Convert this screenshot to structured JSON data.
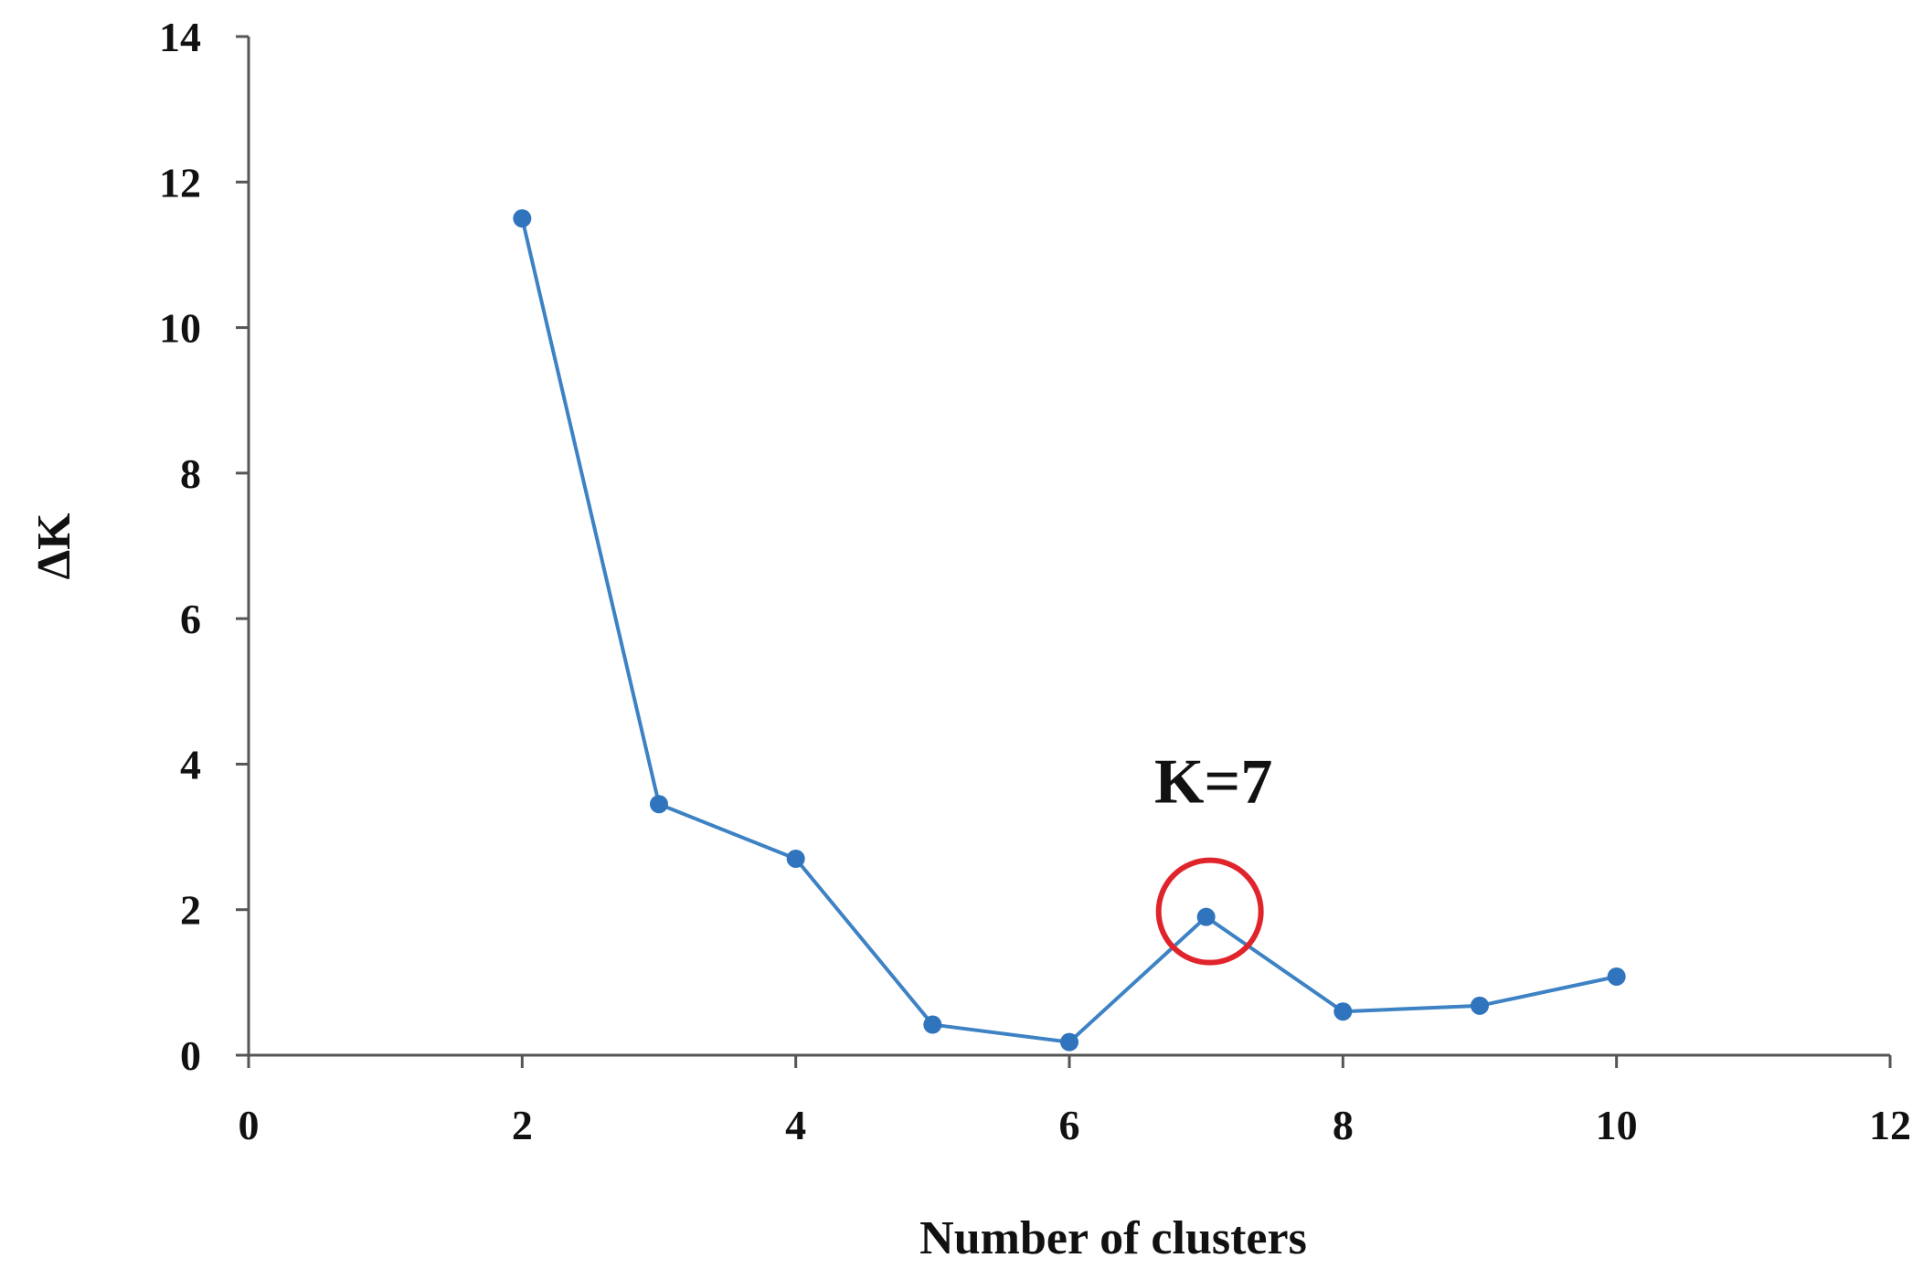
{
  "chart_data": {
    "type": "line",
    "title": "",
    "xlabel": "Number of clusters",
    "ylabel": "ΔK",
    "xlim": [
      0,
      12
    ],
    "ylim": [
      0,
      14
    ],
    "x_ticks": [
      0,
      2,
      4,
      6,
      8,
      10,
      12
    ],
    "y_ticks": [
      0,
      2,
      4,
      6,
      8,
      10,
      12,
      14
    ],
    "grid": false,
    "series": [
      {
        "x": [
          2,
          3,
          4,
          5,
          6,
          7,
          8,
          9,
          10
        ],
        "y": [
          11.5,
          3.45,
          2.7,
          0.42,
          0.18,
          1.9,
          0.6,
          0.68,
          1.08
        ]
      }
    ],
    "annotations": [
      {
        "text": "K=7",
        "x": 7,
        "y": 1.9,
        "marker": "circle"
      }
    ],
    "colors": {
      "series": "#3d82c4",
      "marker": "#2f74bd",
      "highlight": "#e0242b",
      "axis": "#555555"
    }
  }
}
